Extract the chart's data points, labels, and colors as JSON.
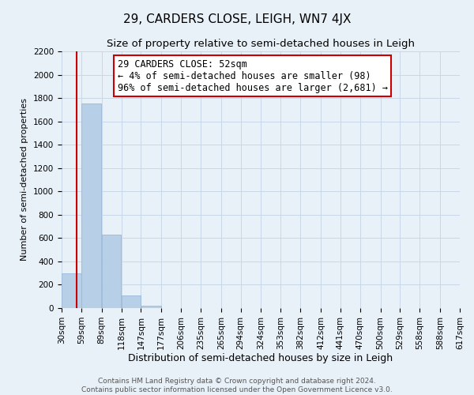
{
  "title": "29, CARDERS CLOSE, LEIGH, WN7 4JX",
  "subtitle": "Size of property relative to semi-detached houses in Leigh",
  "xlabel": "Distribution of semi-detached houses by size in Leigh",
  "ylabel": "Number of semi-detached properties",
  "footer_line1": "Contains HM Land Registry data © Crown copyright and database right 2024.",
  "footer_line2": "Contains public sector information licensed under the Open Government Licence v3.0.",
  "annotation_title": "29 CARDERS CLOSE: 52sqm",
  "annotation_line1": "← 4% of semi-detached houses are smaller (98)",
  "annotation_line2": "96% of semi-detached houses are larger (2,681) →",
  "property_size": 52,
  "bar_left_edges": [
    30,
    59,
    89,
    118,
    147,
    177,
    206,
    235,
    265,
    294,
    324,
    353,
    382,
    412,
    441,
    470,
    500,
    529,
    558,
    588
  ],
  "bar_widths": [
    29,
    30,
    29,
    29,
    30,
    29,
    29,
    30,
    29,
    30,
    29,
    29,
    30,
    29,
    29,
    30,
    29,
    29,
    30,
    29
  ],
  "bar_heights": [
    300,
    1750,
    630,
    110,
    20,
    0,
    0,
    0,
    0,
    0,
    0,
    0,
    0,
    0,
    0,
    0,
    0,
    0,
    0,
    0
  ],
  "bar_color": "#b8cfe8",
  "bar_edgecolor": "#9ab8d8",
  "vline_x": 52,
  "vline_color": "#cc0000",
  "vline_linewidth": 1.5,
  "ylim": [
    0,
    2200
  ],
  "yticks": [
    0,
    200,
    400,
    600,
    800,
    1000,
    1200,
    1400,
    1600,
    1800,
    2000,
    2200
  ],
  "x_tick_labels": [
    "30sqm",
    "59sqm",
    "89sqm",
    "118sqm",
    "147sqm",
    "177sqm",
    "206sqm",
    "235sqm",
    "265sqm",
    "294sqm",
    "324sqm",
    "353sqm",
    "382sqm",
    "412sqm",
    "441sqm",
    "470sqm",
    "500sqm",
    "529sqm",
    "558sqm",
    "588sqm",
    "617sqm"
  ],
  "grid_color": "#c8d8e8",
  "bg_color": "#e8f0f8",
  "annotation_box_color": "#ffffff",
  "annotation_box_edgecolor": "#cc0000",
  "title_fontsize": 11,
  "subtitle_fontsize": 9.5,
  "xlabel_fontsize": 9,
  "ylabel_fontsize": 8,
  "tick_fontsize": 7.5,
  "annotation_fontsize": 8.5,
  "footer_fontsize": 6.5
}
